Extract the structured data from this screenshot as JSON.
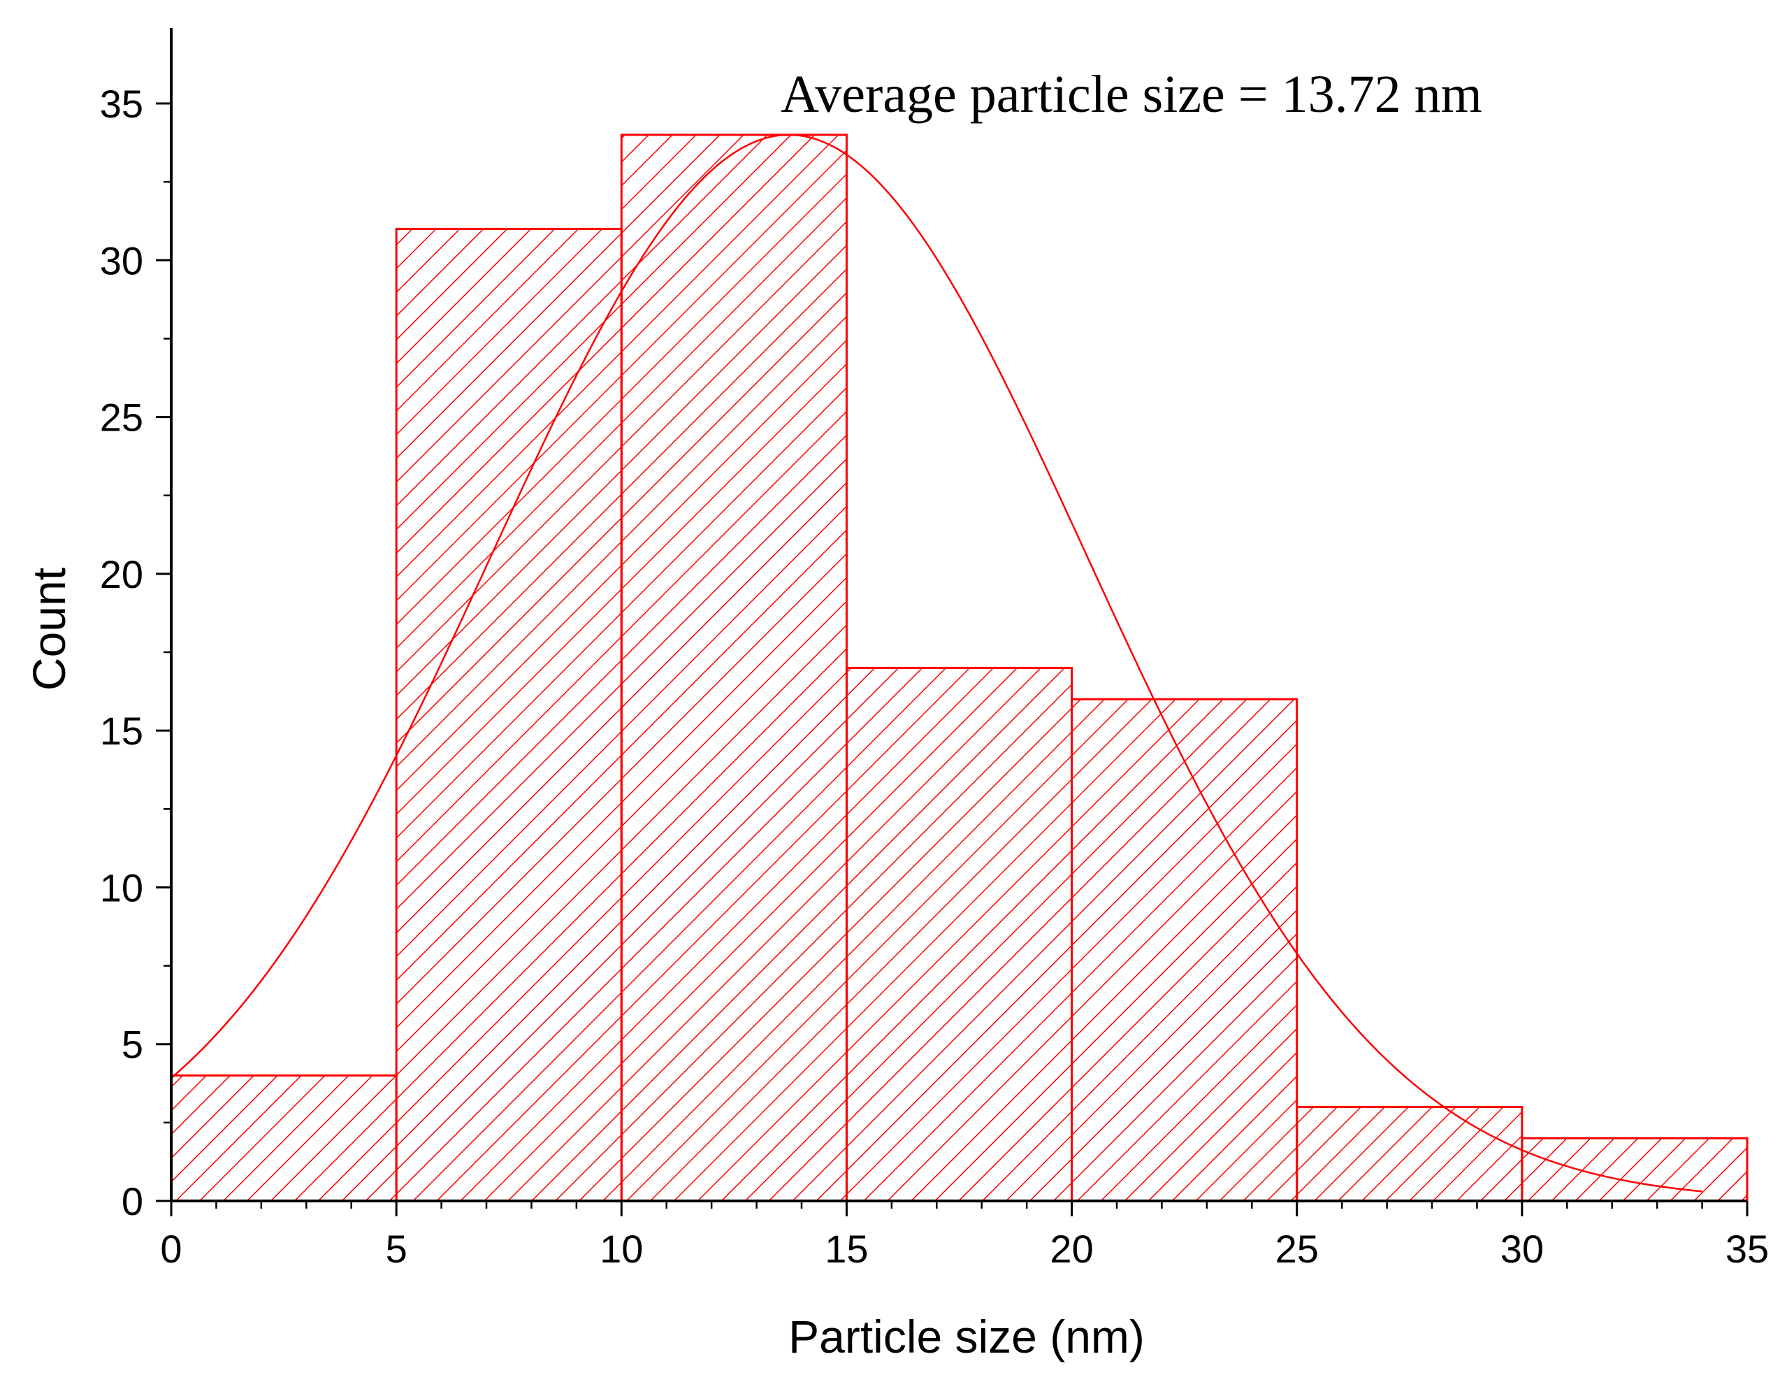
{
  "chart_data": {
    "type": "bar",
    "bins": [
      {
        "start": 0,
        "end": 5,
        "count": 4
      },
      {
        "start": 5,
        "end": 10,
        "count": 31
      },
      {
        "start": 10,
        "end": 15,
        "count": 34
      },
      {
        "start": 15,
        "end": 20,
        "count": 17
      },
      {
        "start": 20,
        "end": 25,
        "count": 16
      },
      {
        "start": 25,
        "end": 30,
        "count": 3
      },
      {
        "start": 30,
        "end": 35,
        "count": 2
      }
    ],
    "fit_curve": {
      "type": "normal",
      "mean": 13.72,
      "peak": 34,
      "sigma": 6.6
    },
    "xlabel": "Particle size (nm)",
    "ylabel": "Count",
    "xlim": [
      0,
      35
    ],
    "ylim": [
      0,
      37
    ],
    "xticks": [
      0,
      5,
      10,
      15,
      20,
      25,
      30,
      35
    ],
    "yticks": [
      0,
      5,
      10,
      15,
      20,
      25,
      30,
      35
    ],
    "annotation": "Average particle size = 13.72 nm",
    "grid": false,
    "legend": "none",
    "colors": {
      "bar": "#ff0000",
      "curve": "#ff0000",
      "axis": "#000000"
    }
  }
}
